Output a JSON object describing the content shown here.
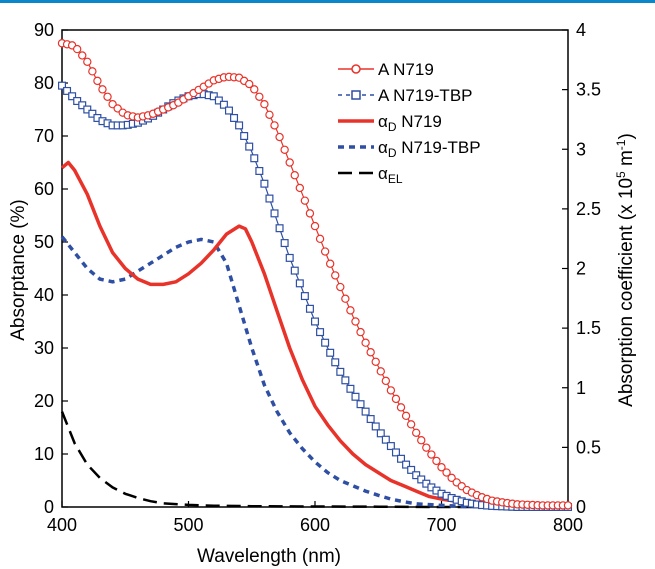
{
  "chart_data": {
    "type": "line",
    "xlabel": "Wavelength (nm)",
    "ylabel_left": "Absorptance (%)",
    "ylabel_right_prefix": "Absorption coefficient (x 10",
    "ylabel_right_exp": "5",
    "ylabel_right_unit": " m",
    "ylabel_right_unit_exp": "-1",
    "ylabel_right_close": ")",
    "xlim": [
      400,
      800
    ],
    "ylim_left": [
      0,
      90
    ],
    "ylim_right": [
      0,
      4
    ],
    "x_ticks": [
      400,
      500,
      600,
      700,
      800
    ],
    "y_left_ticks": [
      0,
      10,
      20,
      30,
      40,
      50,
      60,
      70,
      80,
      90
    ],
    "y_right_ticks": [
      "0",
      "0.5",
      "1",
      "1.5",
      "2",
      "2.5",
      "3",
      "3.5",
      "4"
    ],
    "grid": false,
    "legend_position": "top-right",
    "series": [
      {
        "name_main": "A",
        "name_sub": "",
        "name_suffix": "N719",
        "axis": "left",
        "color": "#e8332a",
        "style": "line-circle",
        "points": [
          [
            400,
            87.5
          ],
          [
            410,
            87
          ],
          [
            420,
            84
          ],
          [
            430,
            79.5
          ],
          [
            440,
            76
          ],
          [
            450,
            74
          ],
          [
            460,
            73.5
          ],
          [
            470,
            74
          ],
          [
            480,
            75
          ],
          [
            490,
            76
          ],
          [
            500,
            77.5
          ],
          [
            510,
            79
          ],
          [
            520,
            80.5
          ],
          [
            530,
            81.2
          ],
          [
            540,
            81
          ],
          [
            550,
            79.5
          ],
          [
            560,
            76
          ],
          [
            570,
            71
          ],
          [
            580,
            65
          ],
          [
            590,
            59
          ],
          [
            600,
            53
          ],
          [
            610,
            47
          ],
          [
            620,
            41.5
          ],
          [
            630,
            36
          ],
          [
            640,
            31
          ],
          [
            650,
            26.5
          ],
          [
            660,
            22
          ],
          [
            670,
            18
          ],
          [
            680,
            14
          ],
          [
            690,
            10.5
          ],
          [
            700,
            7.5
          ],
          [
            710,
            5
          ],
          [
            720,
            3.2
          ],
          [
            730,
            2
          ],
          [
            740,
            1.2
          ],
          [
            750,
            0.8
          ],
          [
            760,
            0.5
          ],
          [
            770,
            0.4
          ],
          [
            780,
            0.3
          ],
          [
            790,
            0.3
          ],
          [
            800,
            0.3
          ]
        ]
      },
      {
        "name_main": "A",
        "name_sub": "",
        "name_suffix": "N719-TBP",
        "axis": "left",
        "color": "#2e4fa3",
        "style": "dash-square",
        "points": [
          [
            400,
            79.5
          ],
          [
            410,
            77
          ],
          [
            420,
            75
          ],
          [
            430,
            73
          ],
          [
            440,
            72
          ],
          [
            450,
            72
          ],
          [
            460,
            72.5
          ],
          [
            470,
            73.5
          ],
          [
            480,
            75
          ],
          [
            490,
            76.5
          ],
          [
            500,
            77.5
          ],
          [
            510,
            78
          ],
          [
            520,
            77.5
          ],
          [
            530,
            75.5
          ],
          [
            540,
            72
          ],
          [
            550,
            67
          ],
          [
            560,
            61
          ],
          [
            570,
            54
          ],
          [
            580,
            47
          ],
          [
            590,
            41
          ],
          [
            600,
            35
          ],
          [
            610,
            30
          ],
          [
            620,
            25.5
          ],
          [
            630,
            21.5
          ],
          [
            640,
            18
          ],
          [
            650,
            14.5
          ],
          [
            660,
            11.5
          ],
          [
            670,
            8.5
          ],
          [
            680,
            6
          ],
          [
            690,
            4
          ],
          [
            700,
            2.5
          ],
          [
            710,
            1.5
          ],
          [
            720,
            0.8
          ],
          [
            730,
            0.4
          ],
          [
            740,
            0.2
          ],
          [
            750,
            0.1
          ],
          [
            760,
            0
          ],
          [
            770,
            0
          ],
          [
            780,
            0
          ],
          [
            790,
            0
          ],
          [
            800,
            0
          ]
        ]
      },
      {
        "name_main": "α",
        "name_sub": "D",
        "name_suffix": "N719",
        "axis": "left",
        "color": "#e8332a",
        "style": "solid-thick",
        "points": [
          [
            400,
            64
          ],
          [
            405,
            65
          ],
          [
            410,
            63.5
          ],
          [
            420,
            59
          ],
          [
            430,
            53
          ],
          [
            440,
            48
          ],
          [
            450,
            45
          ],
          [
            460,
            43
          ],
          [
            470,
            42
          ],
          [
            480,
            42
          ],
          [
            490,
            42.5
          ],
          [
            500,
            44
          ],
          [
            510,
            46
          ],
          [
            520,
            48.5
          ],
          [
            530,
            51.5
          ],
          [
            540,
            53
          ],
          [
            545,
            52.5
          ],
          [
            550,
            50
          ],
          [
            560,
            44
          ],
          [
            570,
            37
          ],
          [
            580,
            30
          ],
          [
            590,
            24
          ],
          [
            600,
            19
          ],
          [
            610,
            15.5
          ],
          [
            620,
            12.5
          ],
          [
            630,
            10
          ],
          [
            640,
            8
          ],
          [
            650,
            6.5
          ],
          [
            660,
            5
          ],
          [
            670,
            4
          ],
          [
            680,
            3
          ],
          [
            690,
            2
          ],
          [
            700,
            1.5
          ],
          [
            720,
            0.8
          ],
          [
            740,
            0.4
          ],
          [
            760,
            0.2
          ],
          [
            780,
            0.1
          ],
          [
            800,
            0.1
          ]
        ]
      },
      {
        "name_main": "α",
        "name_sub": "D",
        "name_suffix": "N719-TBP",
        "axis": "left",
        "color": "#2e4fa3",
        "style": "dotted-thick",
        "points": [
          [
            400,
            51
          ],
          [
            410,
            48
          ],
          [
            420,
            45
          ],
          [
            430,
            43
          ],
          [
            440,
            42.5
          ],
          [
            450,
            43
          ],
          [
            460,
            44.5
          ],
          [
            470,
            46
          ],
          [
            480,
            47.5
          ],
          [
            490,
            49
          ],
          [
            500,
            50
          ],
          [
            510,
            50.5
          ],
          [
            520,
            50
          ],
          [
            530,
            46
          ],
          [
            540,
            38
          ],
          [
            550,
            30
          ],
          [
            560,
            23
          ],
          [
            570,
            18
          ],
          [
            580,
            14
          ],
          [
            590,
            11
          ],
          [
            600,
            8.5
          ],
          [
            610,
            6.5
          ],
          [
            620,
            5
          ],
          [
            630,
            4
          ],
          [
            640,
            3
          ],
          [
            650,
            2.2
          ],
          [
            660,
            1.5
          ],
          [
            670,
            1
          ],
          [
            680,
            0.6
          ],
          [
            700,
            0.3
          ],
          [
            720,
            0.1
          ],
          [
            750,
            0
          ],
          [
            800,
            0
          ]
        ]
      },
      {
        "name_main": "α",
        "name_sub": "EL",
        "name_suffix": "",
        "axis": "left",
        "color": "#000000",
        "style": "dash-long",
        "points": [
          [
            400,
            18
          ],
          [
            410,
            12
          ],
          [
            420,
            8
          ],
          [
            430,
            5.5
          ],
          [
            440,
            3.7
          ],
          [
            450,
            2.5
          ],
          [
            460,
            1.7
          ],
          [
            470,
            1.1
          ],
          [
            480,
            0.7
          ],
          [
            500,
            0.4
          ],
          [
            520,
            0.25
          ],
          [
            550,
            0.15
          ],
          [
            600,
            0.1
          ],
          [
            650,
            0.05
          ],
          [
            700,
            0
          ],
          [
            800,
            0
          ]
        ]
      }
    ]
  }
}
